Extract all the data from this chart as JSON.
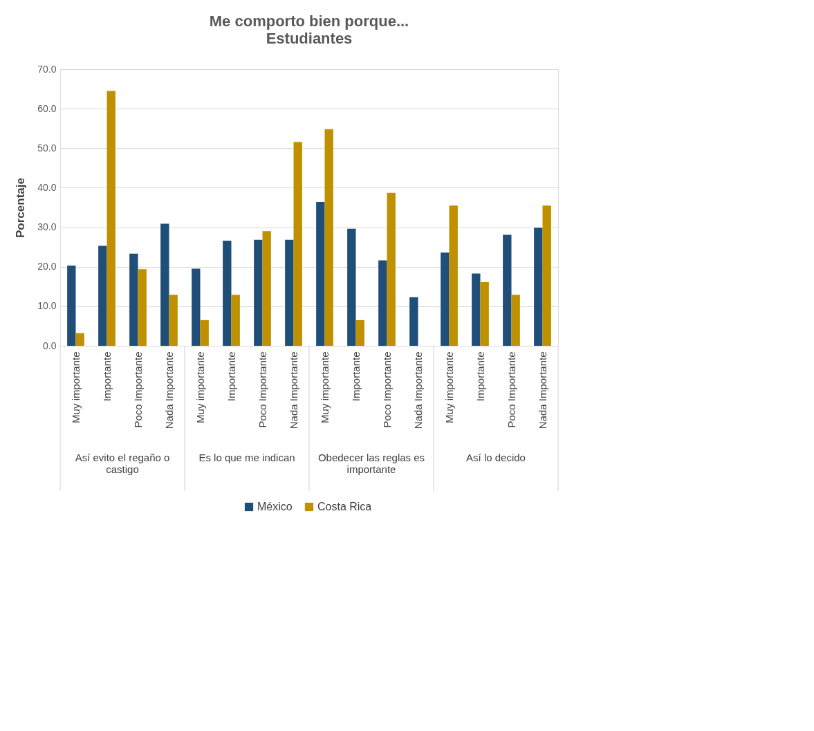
{
  "chart_data": {
    "type": "bar",
    "title": "Me comporto bien porque...",
    "subtitle": "Estudiantes",
    "ylabel": "Porcentaje",
    "categories": [
      "Muy importante",
      "Importante",
      "Poco Importante",
      "Nada Importante",
      "Muy importante",
      "Importante",
      "Poco Importante",
      "Nada Importante",
      "Muy importante",
      "Importante",
      "Poco Importante",
      "Nada Importante",
      "Muy importante",
      "Importante",
      "Poco Importante",
      "Nada Importante"
    ],
    "annotations": [
      "Así evito el regaño o castigo",
      "Es lo que me indican",
      "Obedecer las reglas es importante",
      "Así lo decido"
    ],
    "series": [
      {
        "name": "México",
        "color": "#1f4e79",
        "values": [
          20.3,
          25.3,
          23.3,
          30.9,
          19.5,
          26.6,
          26.8,
          26.8,
          36.4,
          29.6,
          21.6,
          12.3,
          23.6,
          18.3,
          28.1,
          29.9
        ]
      },
      {
        "name": "Costa Rica",
        "color": "#bf9000",
        "values": [
          3.2,
          64.5,
          19.4,
          12.9,
          6.5,
          12.9,
          29.0,
          51.6,
          54.8,
          6.5,
          38.7,
          0,
          35.5,
          16.1,
          12.9,
          35.5
        ]
      }
    ],
    "ylim": [
      0,
      70
    ],
    "yticks": [
      {
        "value": 0,
        "label": "0.0"
      },
      {
        "value": 10,
        "label": "10.0"
      },
      {
        "value": 20,
        "label": "20.0"
      },
      {
        "value": 30,
        "label": "30.0"
      },
      {
        "value": 40,
        "label": "40.0"
      },
      {
        "value": 50,
        "label": "50.0"
      },
      {
        "value": 60,
        "label": "60.0"
      },
      {
        "value": 70,
        "label": "70.0"
      }
    ],
    "grid": "y",
    "legend": "bottom"
  }
}
